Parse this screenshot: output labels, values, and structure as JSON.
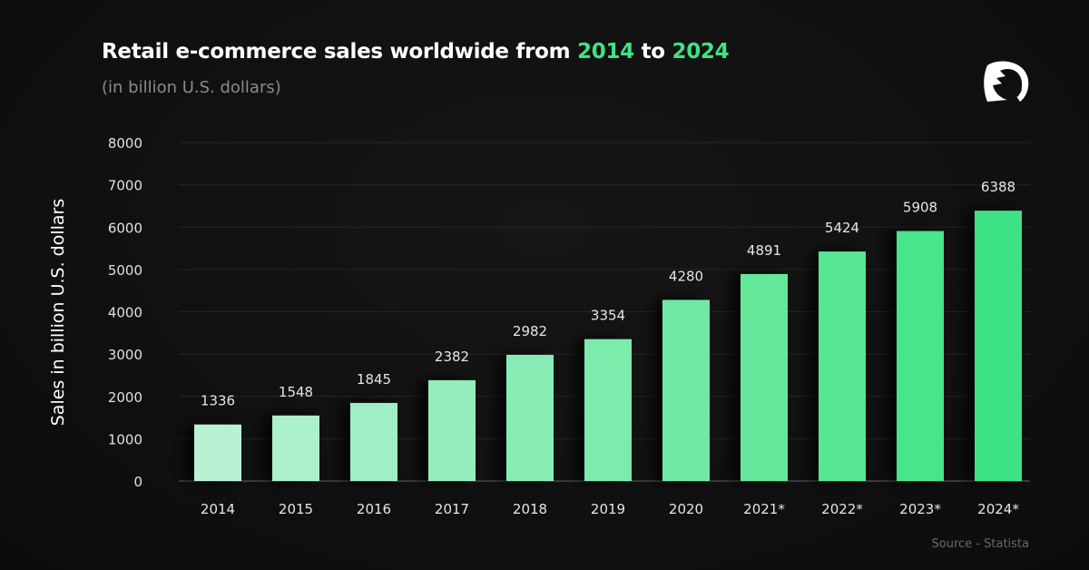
{
  "header": {
    "title_prefix": "Retail e-commerce sales worldwide from ",
    "title_year_start": "2014",
    "title_mid": " to ",
    "title_year_end": "2024",
    "subtitle": "(in billion U.S. dollars)"
  },
  "logo": {
    "icon": "spartan-helmet-icon"
  },
  "source": "Source - Statista",
  "colors": {
    "background": "#111111",
    "accent": "#3ee384",
    "bar_start": "#b8f2d4",
    "bar_end": "#3ee384"
  },
  "chart_data": {
    "type": "bar",
    "categories": [
      "2014",
      "2015",
      "2016",
      "2017",
      "2018",
      "2019",
      "2020",
      "2021*",
      "2022*",
      "2023*",
      "2024*"
    ],
    "values": [
      1336,
      1548,
      1845,
      2382,
      2982,
      3354,
      4280,
      4891,
      5424,
      5908,
      6388
    ],
    "title": "Retail e-commerce sales worldwide from 2014 to 2024",
    "subtitle": "(in billion U.S. dollars)",
    "xlabel": "",
    "ylabel": "Sales in billion U.S. dollars",
    "ylim": [
      0,
      8000
    ],
    "yticks": [
      0,
      1000,
      2000,
      3000,
      4000,
      5000,
      6000,
      7000,
      8000
    ],
    "grid": true,
    "data_labels": true
  }
}
